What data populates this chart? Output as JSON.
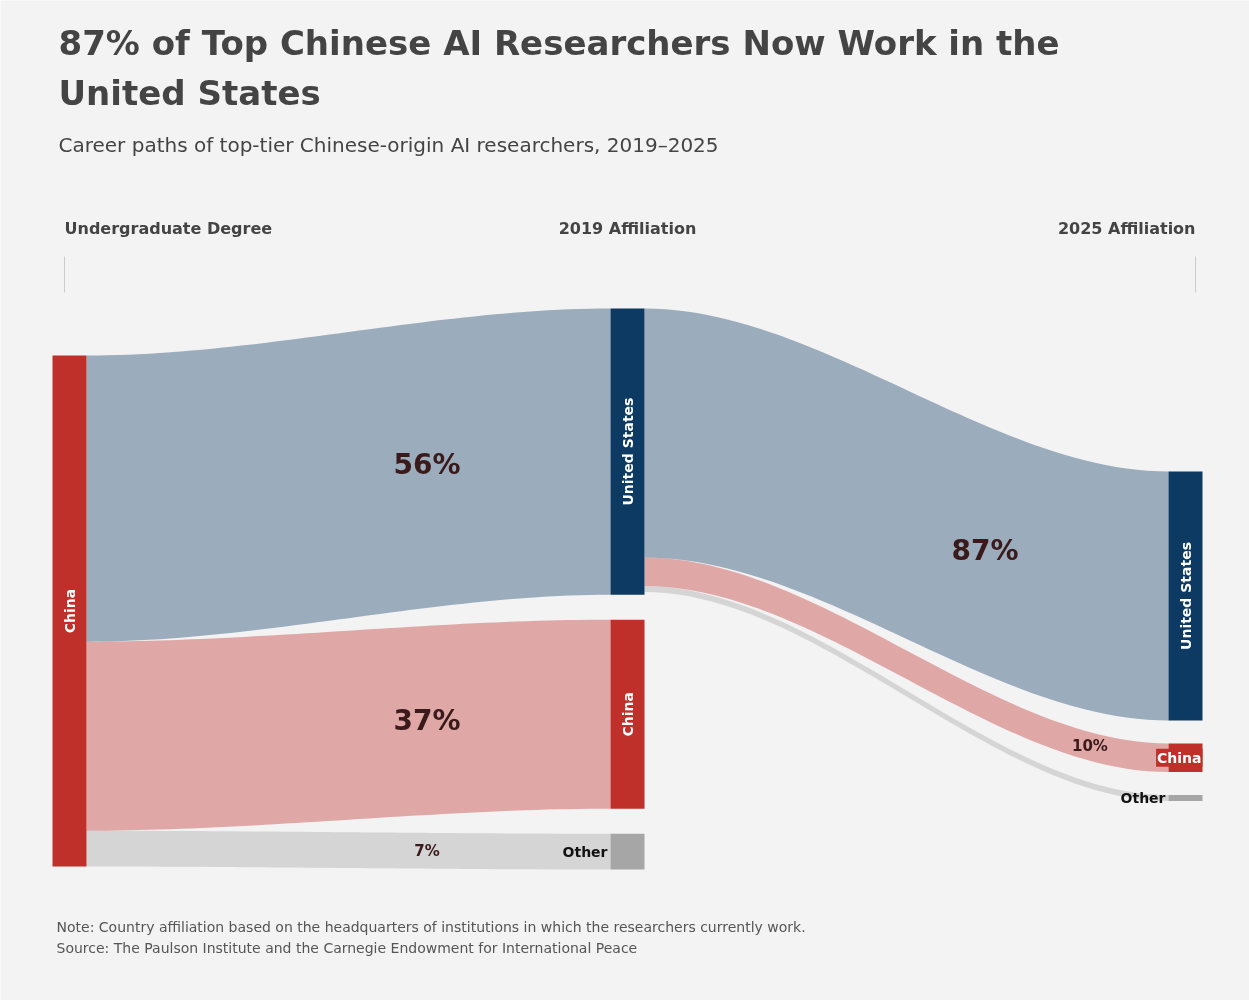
{
  "chart_data": {
    "type": "other",
    "title": "87% of Top Chinese AI Researchers Now Work in the United States",
    "subtitle": "Career paths of top-tier Chinese-origin AI researchers, 2019–2025",
    "categories": [
      "Undergraduate Degree",
      "2019 Affiliation",
      "2025 Affiliation"
    ],
    "series": [
      {
        "name": "China",
        "color": "#c0302a",
        "values": [
          null,
          37,
          10
        ],
        "value_labels": [
          null,
          "37%",
          "10%"
        ]
      },
      {
        "name": "United States",
        "color": "#0d3a63",
        "values": [
          null,
          56,
          87
        ],
        "value_labels": [
          null,
          "56%",
          "87%"
        ]
      },
      {
        "name": "Other",
        "color": "#a6a6a6",
        "values": [
          null,
          7,
          null
        ],
        "value_labels": [
          null,
          "7%",
          null
        ]
      }
    ],
    "annotations": [
      "Note: Country affiliation based on the headquarters of institutions in which the researchers currently work.",
      "Source: The Paulson Institute and the Carnegie Endowment for International Peace"
    ]
  }
}
